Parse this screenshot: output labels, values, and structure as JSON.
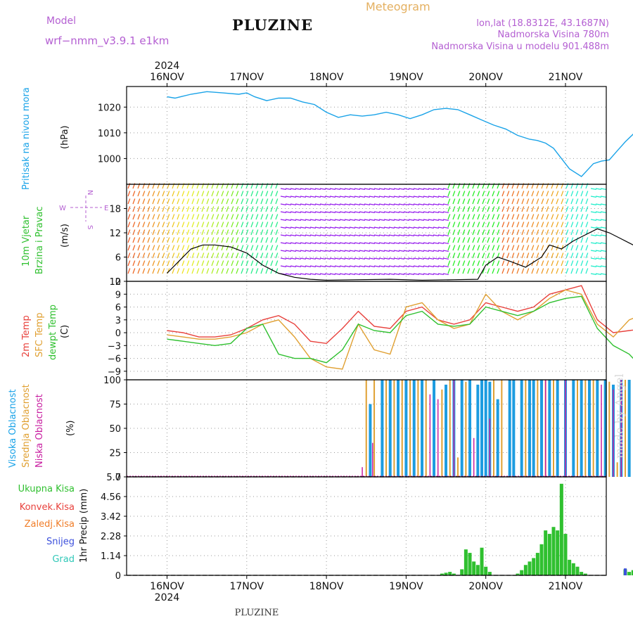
{
  "header": {
    "model_label": "Model",
    "model_name": "wrf−nmm_v3.9.1  e1km",
    "title": "PLUZINE",
    "meteogram_label": "Meteogram",
    "lonlat": "lon,lat (18.8312E, 43.1687N)",
    "elevation": "Nadmorska Visina 780m",
    "model_elevation": "Nadmorska Visina u modelu 901.488m"
  },
  "footer": {
    "station": "PLUZINE",
    "watermark": "made by Angel"
  },
  "colors": {
    "pressure": "#1aa3e8",
    "wind_black": "#000000",
    "temp2m": "#e8413c",
    "sfc": "#e0a032",
    "dewpt": "#2fc02f",
    "high": "#1c9ce0",
    "mid": "#e0a032",
    "low": "#c81ea0",
    "total": "#2fc02f",
    "grad": "#30c8b8",
    "snow": "#3c50dc"
  },
  "chart_data": [
    {
      "id": "pressure",
      "type": "line",
      "ylabel_left": "Pritisak na nivou mora",
      "ylabel_unit": "(hPa)",
      "yticks": [
        "1020",
        "1010",
        "1000"
      ],
      "ylim": [
        990,
        1028
      ],
      "x_top_year": "2024",
      "x_dates": [
        "16NOV",
        "17NOV",
        "18NOV",
        "19NOV",
        "20NOV",
        "21NOV"
      ],
      "x": [
        0,
        0.1,
        0.3,
        0.5,
        0.7,
        0.9,
        1.0,
        1.1,
        1.25,
        1.4,
        1.55,
        1.7,
        1.85,
        2.0,
        2.15,
        2.3,
        2.45,
        2.6,
        2.75,
        2.9,
        3.05,
        3.2,
        3.35,
        3.5,
        3.65,
        3.8,
        3.95,
        4.1,
        4.25,
        4.4,
        4.55,
        4.65,
        4.75,
        4.85,
        4.95,
        5.05,
        5.2,
        5.35,
        5.45,
        5.55,
        5.65,
        5.75,
        5.85,
        5.95,
        6.0
      ],
      "y": [
        1024,
        1023.5,
        1025,
        1026,
        1025.5,
        1025,
        1025.5,
        1024,
        1022.5,
        1023.5,
        1023.5,
        1022,
        1021,
        1018,
        1016,
        1017,
        1016.5,
        1017,
        1018,
        1017,
        1015.5,
        1017,
        1019,
        1019.5,
        1019,
        1017,
        1015,
        1013,
        1011.5,
        1009,
        1007.5,
        1007,
        1006,
        1004,
        1000,
        996,
        993,
        998,
        999,
        999.5,
        1003,
        1006.5,
        1009.5,
        1010,
        1010.5
      ]
    },
    {
      "id": "wind",
      "type": "line",
      "ylabel_left": "10m Vjetar",
      "ylabel_left2": "Brzina i Pravac",
      "ylabel_unit": "(m/s)",
      "yticks": [
        "18",
        "12",
        "6",
        "0"
      ],
      "ylim": [
        0,
        24
      ],
      "compass": {
        "n": "N",
        "w": "W",
        "e": "E",
        "s": "S"
      },
      "x": [
        0,
        0.15,
        0.3,
        0.45,
        0.6,
        0.8,
        1.0,
        1.2,
        1.4,
        1.6,
        1.8,
        2.0,
        2.4,
        2.8,
        3.2,
        3.6,
        3.9,
        4.0,
        4.15,
        4.3,
        4.5,
        4.7,
        4.8,
        4.95,
        5.1,
        5.25,
        5.4,
        5.55,
        5.7,
        5.85,
        6.0
      ],
      "y": [
        2,
        5,
        8,
        9,
        9,
        8.5,
        7,
        4,
        2,
        1,
        0.5,
        0.3,
        0.4,
        0.5,
        0.3,
        0.4,
        0.5,
        4,
        6,
        5,
        3.5,
        6,
        9,
        8,
        10,
        11.5,
        13,
        12,
        10.5,
        9,
        5
      ]
    },
    {
      "id": "temperature",
      "type": "line",
      "ylabel_left": "2m Temp",
      "ylabel_left2": "SFC Temp",
      "ylabel_left3": "dewpt Temp",
      "ylabel_unit": "(C)",
      "yticks": [
        "12",
        "9",
        "6",
        "3",
        "0",
        "−3",
        "−6",
        "−9"
      ],
      "ylim": [
        -11,
        12
      ],
      "x": [
        0,
        0.2,
        0.4,
        0.6,
        0.8,
        1.0,
        1.2,
        1.4,
        1.6,
        1.8,
        2.0,
        2.2,
        2.4,
        2.6,
        2.8,
        3.0,
        3.2,
        3.4,
        3.6,
        3.8,
        4.0,
        4.2,
        4.4,
        4.6,
        4.8,
        5.0,
        5.2,
        5.4,
        5.6,
        5.8,
        6.0
      ],
      "series": [
        {
          "key": "temp2m",
          "y": [
            0.5,
            0,
            -1,
            -1,
            -0.5,
            1,
            3,
            4,
            2,
            -2,
            -2.5,
            1,
            5,
            1.5,
            1,
            5,
            6,
            3,
            2,
            3,
            7,
            6,
            5,
            6,
            9,
            10,
            11,
            3,
            0,
            0.5,
            1
          ]
        },
        {
          "key": "sfc",
          "y": [
            -0.5,
            -1,
            -1.5,
            -1.5,
            -1,
            0,
            2,
            3,
            -1,
            -6,
            -8,
            -8.5,
            2,
            -4,
            -5,
            6,
            7,
            3,
            1,
            2,
            9,
            5,
            3,
            5,
            8,
            10,
            9,
            2,
            -1,
            3,
            4.5
          ]
        },
        {
          "key": "dewpt",
          "y": [
            -1.5,
            -2,
            -2.5,
            -3,
            -2.5,
            1,
            2,
            -5,
            -6,
            -6,
            -7,
            -4,
            2,
            0.5,
            0,
            4,
            5,
            2,
            1.5,
            2,
            6,
            5,
            4,
            5,
            7,
            8,
            8.5,
            1,
            -3,
            -5,
            -9
          ]
        }
      ]
    },
    {
      "id": "clouds",
      "type": "bar",
      "ylabel_left": "Visoka Oblacnost",
      "ylabel_left2": "Srednja Oblacnost",
      "ylabel_left3": "Niska Oblacnost",
      "ylabel_unit": "(%)",
      "yticks": [
        "100",
        "75",
        "50",
        "25",
        "0"
      ],
      "ylim": [
        0,
        100
      ],
      "high": [
        [
          2.55,
          75
        ],
        [
          2.7,
          100
        ],
        [
          2.8,
          100
        ],
        [
          2.9,
          100
        ],
        [
          3.0,
          100
        ],
        [
          3.1,
          100
        ],
        [
          3.2,
          100
        ],
        [
          3.35,
          100
        ],
        [
          3.5,
          95
        ],
        [
          3.6,
          100
        ],
        [
          3.7,
          100
        ],
        [
          3.8,
          100
        ],
        [
          3.9,
          95
        ],
        [
          3.95,
          100
        ],
        [
          4.0,
          100
        ],
        [
          4.05,
          98
        ],
        [
          4.15,
          80
        ],
        [
          4.3,
          100
        ],
        [
          4.35,
          100
        ],
        [
          4.45,
          100
        ],
        [
          4.55,
          100
        ],
        [
          4.6,
          100
        ],
        [
          4.7,
          100
        ],
        [
          4.8,
          100
        ],
        [
          4.9,
          100
        ],
        [
          5.0,
          100
        ],
        [
          5.1,
          100
        ],
        [
          5.2,
          100
        ],
        [
          5.3,
          100
        ],
        [
          5.4,
          100
        ],
        [
          5.5,
          100
        ],
        [
          5.6,
          95
        ],
        [
          5.7,
          100
        ],
        [
          5.8,
          100
        ]
      ],
      "mid": [
        [
          2.5,
          100
        ],
        [
          2.6,
          100
        ],
        [
          2.75,
          100
        ],
        [
          2.85,
          100
        ],
        [
          2.95,
          100
        ],
        [
          3.05,
          100
        ],
        [
          3.15,
          100
        ],
        [
          3.25,
          100
        ],
        [
          3.45,
          90
        ],
        [
          3.55,
          100
        ],
        [
          3.65,
          20
        ],
        [
          3.75,
          98
        ],
        [
          4.1,
          100
        ],
        [
          4.2,
          100
        ],
        [
          4.5,
          100
        ],
        [
          4.65,
          100
        ],
        [
          4.75,
          100
        ],
        [
          4.85,
          100
        ],
        [
          5.15,
          100
        ],
        [
          5.25,
          100
        ],
        [
          5.35,
          100
        ],
        [
          5.55,
          98
        ],
        [
          5.65,
          15
        ],
        [
          5.75,
          100
        ],
        [
          5.9,
          100
        ]
      ],
      "low": [
        [
          2.45,
          10
        ],
        [
          2.58,
          35
        ],
        [
          3.3,
          85
        ],
        [
          3.4,
          80
        ],
        [
          3.6,
          100
        ],
        [
          3.85,
          40
        ],
        [
          4.05,
          60
        ],
        [
          4.75,
          100
        ],
        [
          5.0,
          100
        ],
        [
          5.45,
          95
        ],
        [
          5.6,
          90
        ],
        [
          5.7,
          100
        ]
      ]
    },
    {
      "id": "precip",
      "type": "bar",
      "legend": [
        "Ukupna Kisa",
        "Konvek.Kisa",
        "Zaledj.Kisa",
        "Snijeg",
        "Grad"
      ],
      "ylabel_unit": "1hr Precip (mm)",
      "yticks": [
        "5.7",
        "4.56",
        "3.42",
        "2.28",
        "1.14",
        "0"
      ],
      "ylim": [
        0,
        5.7
      ],
      "x_bottom_year": "2024",
      "total": [
        [
          3.45,
          0.1
        ],
        [
          3.5,
          0.15
        ],
        [
          3.55,
          0.2
        ],
        [
          3.6,
          0.1
        ],
        [
          3.7,
          0.35
        ],
        [
          3.75,
          1.5
        ],
        [
          3.8,
          1.3
        ],
        [
          3.85,
          0.8
        ],
        [
          3.9,
          0.6
        ],
        [
          3.95,
          1.6
        ],
        [
          4.0,
          0.5
        ],
        [
          4.05,
          0.2
        ],
        [
          4.4,
          0.1
        ],
        [
          4.45,
          0.3
        ],
        [
          4.5,
          0.6
        ],
        [
          4.55,
          0.8
        ],
        [
          4.6,
          1.0
        ],
        [
          4.65,
          1.3
        ],
        [
          4.7,
          1.8
        ],
        [
          4.75,
          2.6
        ],
        [
          4.8,
          2.4
        ],
        [
          4.85,
          2.8
        ],
        [
          4.9,
          2.6
        ],
        [
          4.95,
          5.3
        ],
        [
          5.0,
          2.4
        ],
        [
          5.05,
          0.9
        ],
        [
          5.1,
          0.7
        ],
        [
          5.15,
          0.5
        ],
        [
          5.2,
          0.2
        ],
        [
          5.25,
          0.1
        ],
        [
          5.75,
          0.35
        ],
        [
          5.8,
          0.2
        ],
        [
          5.85,
          0.3
        ],
        [
          5.9,
          0.15
        ]
      ],
      "snow": [
        [
          5.75,
          0.4
        ]
      ]
    }
  ]
}
